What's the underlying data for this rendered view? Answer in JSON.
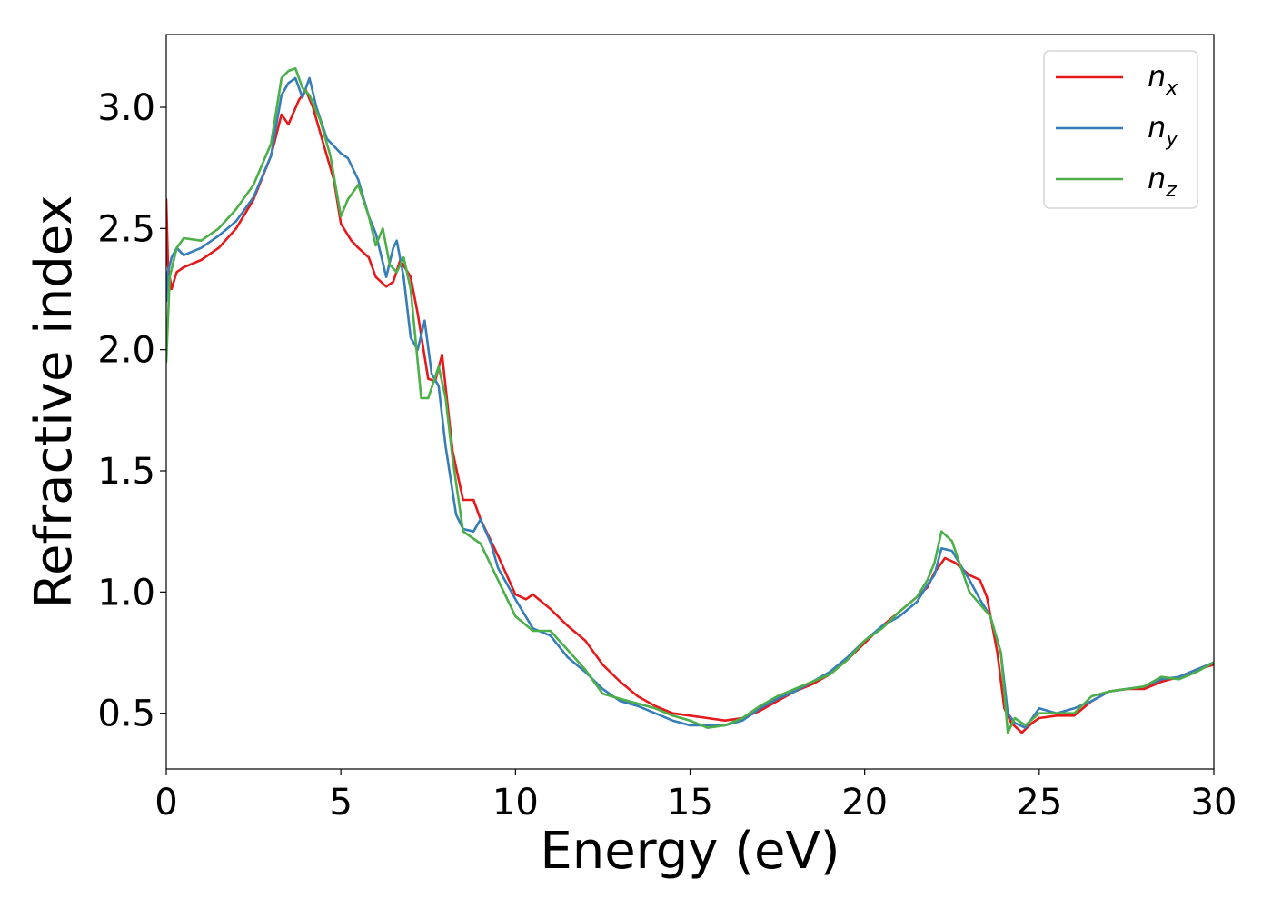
{
  "chart_data": {
    "type": "line",
    "title": "",
    "xlabel": "Energy (eV)",
    "ylabel": "Refractive index",
    "xlim": [
      0,
      30
    ],
    "ylim": [
      0.27,
      3.3
    ],
    "xticks": [
      0,
      5,
      10,
      15,
      20,
      25,
      30
    ],
    "xtick_labels": [
      "0",
      "5",
      "10",
      "15",
      "20",
      "25",
      "30"
    ],
    "yticks": [
      0.5,
      1.0,
      1.5,
      2.0,
      2.5,
      3.0
    ],
    "ytick_labels": [
      "0.5",
      "1.0",
      "1.5",
      "2.0",
      "2.5",
      "3.0"
    ],
    "grid": false,
    "legend_position": "top-right",
    "series": [
      {
        "name": "n",
        "subscript": "x",
        "color": "#e41a1c",
        "x": [
          0,
          0.05,
          0.15,
          0.3,
          0.5,
          1.0,
          1.5,
          2.0,
          2.5,
          3.0,
          3.3,
          3.5,
          3.8,
          4.0,
          4.2,
          4.5,
          4.8,
          5.0,
          5.3,
          5.5,
          5.8,
          6.0,
          6.3,
          6.5,
          6.7,
          7.0,
          7.2,
          7.5,
          7.7,
          7.9,
          8.2,
          8.5,
          8.8,
          9.0,
          9.5,
          10.0,
          10.3,
          10.5,
          11.0,
          11.5,
          12.0,
          12.5,
          13.0,
          13.5,
          14.0,
          14.5,
          15.0,
          15.5,
          16.0,
          16.5,
          17.0,
          17.5,
          18.0,
          18.5,
          19.0,
          19.5,
          20.0,
          20.5,
          21.0,
          21.5,
          21.8,
          22.0,
          22.3,
          22.6,
          23.0,
          23.3,
          23.5,
          23.8,
          24.0,
          24.2,
          24.5,
          24.8,
          25.0,
          25.5,
          26.0,
          26.5,
          27.0,
          27.5,
          28.0,
          28.5,
          29.0,
          29.5,
          30.0
        ],
        "values": [
          2.62,
          2.35,
          2.25,
          2.32,
          2.34,
          2.37,
          2.42,
          2.5,
          2.62,
          2.8,
          2.97,
          2.93,
          3.03,
          3.07,
          3.0,
          2.85,
          2.7,
          2.52,
          2.45,
          2.42,
          2.38,
          2.3,
          2.26,
          2.28,
          2.37,
          2.3,
          2.15,
          1.88,
          1.87,
          1.98,
          1.58,
          1.38,
          1.38,
          1.3,
          1.15,
          0.99,
          0.97,
          0.99,
          0.93,
          0.86,
          0.8,
          0.7,
          0.63,
          0.57,
          0.53,
          0.5,
          0.49,
          0.48,
          0.47,
          0.48,
          0.51,
          0.55,
          0.59,
          0.62,
          0.66,
          0.72,
          0.79,
          0.86,
          0.92,
          0.98,
          1.02,
          1.08,
          1.14,
          1.12,
          1.07,
          1.05,
          0.98,
          0.75,
          0.52,
          0.46,
          0.42,
          0.46,
          0.48,
          0.49,
          0.49,
          0.55,
          0.59,
          0.6,
          0.6,
          0.63,
          0.65,
          0.68,
          0.7
        ]
      },
      {
        "name": "n",
        "subscript": "y",
        "color": "#377eb8",
        "x": [
          0,
          0.05,
          0.15,
          0.3,
          0.5,
          1.0,
          1.5,
          2.0,
          2.5,
          3.0,
          3.3,
          3.5,
          3.7,
          3.9,
          4.1,
          4.3,
          4.6,
          5.0,
          5.2,
          5.5,
          5.8,
          6.0,
          6.3,
          6.5,
          6.6,
          6.8,
          7.0,
          7.2,
          7.4,
          7.6,
          7.8,
          8.0,
          8.3,
          8.5,
          8.8,
          9.0,
          9.3,
          9.5,
          10.0,
          10.5,
          11.0,
          11.5,
          12.0,
          12.5,
          13.0,
          13.5,
          14.0,
          14.5,
          15.0,
          15.5,
          16.0,
          16.5,
          17.0,
          17.5,
          18.0,
          18.5,
          19.0,
          19.5,
          20.0,
          20.5,
          21.0,
          21.5,
          21.8,
          22.0,
          22.2,
          22.5,
          23.0,
          23.3,
          23.6,
          23.9,
          24.1,
          24.3,
          24.6,
          25.0,
          25.5,
          26.0,
          26.5,
          27.0,
          27.5,
          28.0,
          28.5,
          29.0,
          29.5,
          30.0
        ],
        "values": [
          2.2,
          2.32,
          2.38,
          2.42,
          2.39,
          2.42,
          2.47,
          2.53,
          2.63,
          2.8,
          3.05,
          3.1,
          3.12,
          3.04,
          3.12,
          3.0,
          2.87,
          2.81,
          2.79,
          2.7,
          2.55,
          2.48,
          2.3,
          2.42,
          2.45,
          2.3,
          2.05,
          2.0,
          2.12,
          1.9,
          1.85,
          1.6,
          1.32,
          1.26,
          1.25,
          1.3,
          1.2,
          1.1,
          0.97,
          0.85,
          0.82,
          0.73,
          0.67,
          0.6,
          0.55,
          0.53,
          0.5,
          0.47,
          0.45,
          0.45,
          0.45,
          0.47,
          0.52,
          0.56,
          0.59,
          0.63,
          0.67,
          0.73,
          0.8,
          0.86,
          0.9,
          0.96,
          1.03,
          1.07,
          1.18,
          1.17,
          1.05,
          0.97,
          0.9,
          0.75,
          0.5,
          0.46,
          0.44,
          0.52,
          0.5,
          0.52,
          0.55,
          0.59,
          0.6,
          0.61,
          0.64,
          0.65,
          0.68,
          0.71
        ]
      },
      {
        "name": "n",
        "subscript": "z",
        "color": "#4daf4a",
        "x": [
          0,
          0.1,
          0.3,
          0.5,
          1.0,
          1.5,
          2.0,
          2.5,
          3.0,
          3.3,
          3.5,
          3.7,
          3.9,
          4.1,
          4.4,
          4.7,
          5.0,
          5.2,
          5.5,
          5.8,
          6.0,
          6.2,
          6.4,
          6.6,
          6.8,
          7.0,
          7.3,
          7.5,
          7.8,
          8.0,
          8.2,
          8.5,
          8.7,
          9.0,
          9.5,
          10.0,
          10.5,
          11.0,
          11.5,
          12.0,
          12.5,
          13.0,
          13.5,
          14.0,
          14.5,
          15.0,
          15.5,
          16.0,
          16.5,
          17.0,
          17.5,
          18.0,
          18.5,
          19.0,
          19.5,
          20.0,
          20.5,
          21.0,
          21.5,
          21.8,
          22.0,
          22.2,
          22.5,
          23.0,
          23.3,
          23.6,
          23.9,
          24.1,
          24.3,
          24.6,
          25.0,
          25.5,
          26.0,
          26.5,
          27.0,
          27.5,
          28.0,
          28.5,
          29.0,
          29.5,
          30.0
        ],
        "values": [
          1.95,
          2.3,
          2.42,
          2.46,
          2.45,
          2.5,
          2.58,
          2.68,
          2.85,
          3.12,
          3.15,
          3.16,
          3.08,
          3.05,
          2.95,
          2.8,
          2.55,
          2.62,
          2.68,
          2.55,
          2.43,
          2.5,
          2.35,
          2.32,
          2.38,
          2.25,
          1.8,
          1.8,
          1.93,
          1.8,
          1.55,
          1.25,
          1.23,
          1.2,
          1.05,
          0.9,
          0.84,
          0.84,
          0.76,
          0.68,
          0.58,
          0.56,
          0.54,
          0.52,
          0.49,
          0.47,
          0.44,
          0.45,
          0.48,
          0.53,
          0.57,
          0.6,
          0.63,
          0.66,
          0.72,
          0.8,
          0.85,
          0.92,
          0.98,
          1.05,
          1.12,
          1.25,
          1.21,
          1.0,
          0.95,
          0.9,
          0.75,
          0.42,
          0.48,
          0.45,
          0.5,
          0.5,
          0.5,
          0.57,
          0.59,
          0.6,
          0.61,
          0.65,
          0.64,
          0.67,
          0.71
        ]
      }
    ]
  }
}
